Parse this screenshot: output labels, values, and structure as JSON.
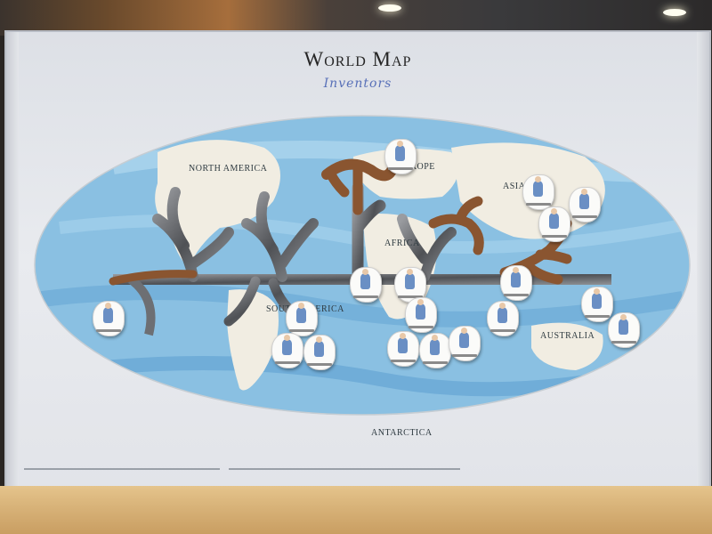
{
  "poster": {
    "title": "World Map",
    "subtitle": "Inventors"
  },
  "regions": {
    "north_america": "NORTH AMERICA",
    "europe": "EUROPE",
    "asia": "ASIA",
    "africa": "AFRICA",
    "south_america": "SOUTH AMERICA",
    "australia": "AUSTRALIA",
    "antarctica": "ANTARCTICA"
  },
  "colors": {
    "ocean": "#7fb8dd",
    "land": "#f1ede2",
    "tree_wood": "#8a5530",
    "tree_mirror": "#6d6f73",
    "board": "#e6e8ec",
    "shelf": "#d9b47a"
  },
  "chip_icons": [
    "inventor-portrait-icon"
  ]
}
